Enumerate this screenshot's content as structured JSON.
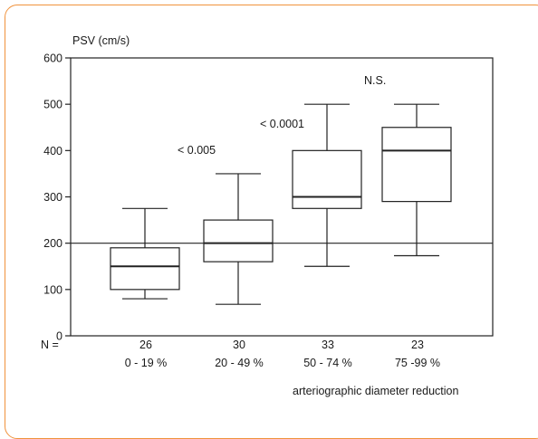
{
  "frame_color": "#f0923c",
  "chart_data": {
    "type": "box",
    "ylabel": "PSV (cm/s)",
    "xlabel": "arteriographic diameter reduction",
    "ylim": [
      0,
      600
    ],
    "yticks": [
      0,
      100,
      200,
      300,
      400,
      500,
      600
    ],
    "n_label": "N =",
    "reference_line": 200,
    "grid": false,
    "groups": [
      {
        "label": "0 - 19 %",
        "n": "26",
        "min": 80,
        "q1": 100,
        "median": 150,
        "q3": 190,
        "max": 275
      },
      {
        "label": "20 - 49 %",
        "n": "30",
        "min": 68,
        "q1": 160,
        "median": 200,
        "q3": 250,
        "max": 350
      },
      {
        "label": "50 - 74 %",
        "n": "33",
        "min": 150,
        "q1": 275,
        "median": 300,
        "q3": 400,
        "max": 500
      },
      {
        "label": "75 -99 %",
        "n": "23",
        "min": 173,
        "q1": 290,
        "median": 400,
        "q3": 450,
        "max": 500
      }
    ],
    "annotations": [
      "< 0.005",
      "< 0.0001",
      "N.S."
    ]
  }
}
